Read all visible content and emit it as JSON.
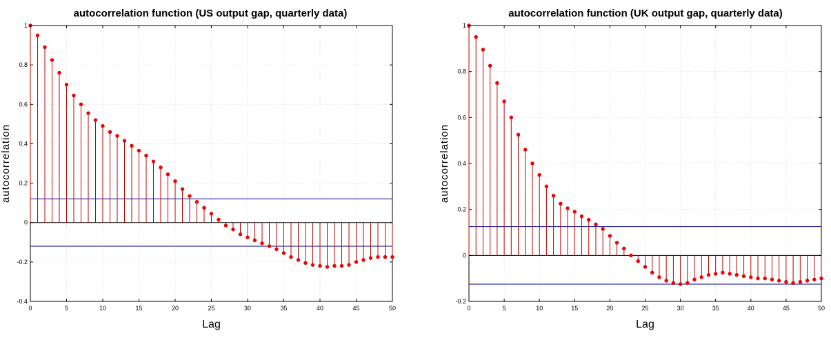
{
  "chart_data": [
    {
      "type": "stem",
      "title": "autocorrelation function (US output gap, quarterly  data)",
      "xlabel": "Lag",
      "ylabel": "autocorrelation",
      "xlim": [
        0,
        50
      ],
      "ylim": [
        -0.4,
        1
      ],
      "xticks": [
        0,
        5,
        10,
        15,
        20,
        25,
        30,
        35,
        40,
        45,
        50
      ],
      "yticks": [
        -0.4,
        -0.2,
        0,
        0.2,
        0.4,
        0.6,
        0.8,
        1
      ],
      "grid": true,
      "confidence_bounds": [
        0.12,
        -0.12
      ],
      "colors": {
        "stem": "#c00000",
        "marker": "#ff0000",
        "bounds": "#00008b",
        "zero_line": "#000000",
        "grid": "#d9d9d9"
      },
      "x": [
        0,
        1,
        2,
        3,
        4,
        5,
        6,
        7,
        8,
        9,
        10,
        11,
        12,
        13,
        14,
        15,
        16,
        17,
        18,
        19,
        20,
        21,
        22,
        23,
        24,
        25,
        26,
        27,
        28,
        29,
        30,
        31,
        32,
        33,
        34,
        35,
        36,
        37,
        38,
        39,
        40,
        41,
        42,
        43,
        44,
        45,
        46,
        47,
        48,
        49,
        50
      ],
      "values": [
        1.0,
        0.95,
        0.89,
        0.825,
        0.76,
        0.7,
        0.645,
        0.6,
        0.555,
        0.52,
        0.49,
        0.46,
        0.44,
        0.415,
        0.39,
        0.365,
        0.34,
        0.31,
        0.28,
        0.245,
        0.21,
        0.17,
        0.135,
        0.105,
        0.075,
        0.045,
        0.015,
        -0.015,
        -0.035,
        -0.06,
        -0.075,
        -0.09,
        -0.105,
        -0.12,
        -0.135,
        -0.155,
        -0.175,
        -0.19,
        -0.205,
        -0.215,
        -0.22,
        -0.225,
        -0.22,
        -0.22,
        -0.215,
        -0.2,
        -0.19,
        -0.18,
        -0.175,
        -0.175,
        -0.175
      ]
    },
    {
      "type": "stem",
      "title": "autocorrelation function (UK output gap, quarterly data)",
      "xlabel": "Lag",
      "ylabel": "autocorrelation",
      "xlim": [
        0,
        50
      ],
      "ylim": [
        -0.2,
        1
      ],
      "xticks": [
        0,
        5,
        10,
        15,
        20,
        25,
        30,
        35,
        40,
        45,
        50
      ],
      "yticks": [
        -0.2,
        0,
        0.2,
        0.4,
        0.6,
        0.8,
        1
      ],
      "grid": true,
      "confidence_bounds": [
        0.125,
        -0.125
      ],
      "colors": {
        "stem": "#c00000",
        "marker": "#ff0000",
        "bounds": "#00008b",
        "zero_line": "#000000",
        "grid": "#d9d9d9"
      },
      "x": [
        0,
        1,
        2,
        3,
        4,
        5,
        6,
        7,
        8,
        9,
        10,
        11,
        12,
        13,
        14,
        15,
        16,
        17,
        18,
        19,
        20,
        21,
        22,
        23,
        24,
        25,
        26,
        27,
        28,
        29,
        30,
        31,
        32,
        33,
        34,
        35,
        36,
        37,
        38,
        39,
        40,
        41,
        42,
        43,
        44,
        45,
        46,
        47,
        48,
        49,
        50
      ],
      "values": [
        1.0,
        0.95,
        0.895,
        0.825,
        0.75,
        0.67,
        0.6,
        0.525,
        0.46,
        0.4,
        0.35,
        0.3,
        0.26,
        0.225,
        0.205,
        0.19,
        0.17,
        0.155,
        0.135,
        0.115,
        0.085,
        0.055,
        0.03,
        0.0,
        -0.025,
        -0.05,
        -0.075,
        -0.095,
        -0.11,
        -0.12,
        -0.125,
        -0.12,
        -0.105,
        -0.095,
        -0.085,
        -0.08,
        -0.075,
        -0.08,
        -0.085,
        -0.09,
        -0.095,
        -0.1,
        -0.1,
        -0.105,
        -0.11,
        -0.115,
        -0.12,
        -0.115,
        -0.11,
        -0.105,
        -0.1
      ]
    }
  ]
}
